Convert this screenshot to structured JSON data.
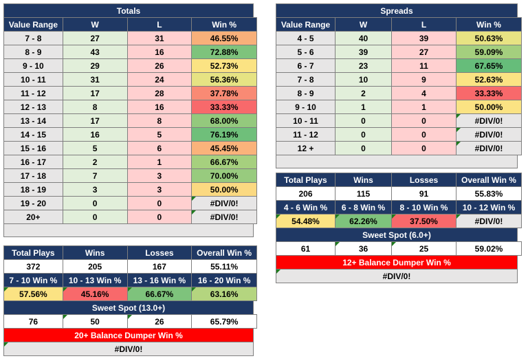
{
  "totals": {
    "title": "Totals",
    "headers": [
      "Value Range",
      "W",
      "L",
      "Win %"
    ],
    "rows": [
      {
        "range": "7 - 8",
        "w": "27",
        "l": "31",
        "pct": "46.55%",
        "color": "#f8b07a"
      },
      {
        "range": "8 - 9",
        "w": "43",
        "l": "16",
        "pct": "72.88%",
        "color": "#7ec37c"
      },
      {
        "range": "9 - 10",
        "w": "29",
        "l": "26",
        "pct": "52.73%",
        "color": "#fbe383"
      },
      {
        "range": "10 - 11",
        "w": "31",
        "l": "24",
        "pct": "56.36%",
        "color": "#e6e383"
      },
      {
        "range": "11 - 12",
        "w": "17",
        "l": "28",
        "pct": "37.78%",
        "color": "#f98a74"
      },
      {
        "range": "12 - 13",
        "w": "8",
        "l": "16",
        "pct": "33.33%",
        "color": "#f8696b"
      },
      {
        "range": "13 - 14",
        "w": "17",
        "l": "8",
        "pct": "68.00%",
        "color": "#94c97d"
      },
      {
        "range": "14 - 15",
        "w": "16",
        "l": "5",
        "pct": "76.19%",
        "color": "#6fbf7a"
      },
      {
        "range": "15 - 16",
        "w": "5",
        "l": "6",
        "pct": "45.45%",
        "color": "#fab37b"
      },
      {
        "range": "16 - 17",
        "w": "2",
        "l": "1",
        "pct": "66.67%",
        "color": "#a6d07e"
      },
      {
        "range": "17 - 18",
        "w": "7",
        "l": "3",
        "pct": "70.00%",
        "color": "#98cb7e"
      },
      {
        "range": "18 - 19",
        "w": "3",
        "l": "3",
        "pct": "50.00%",
        "color": "#fbd981"
      },
      {
        "range": "19 - 20",
        "w": "0",
        "l": "0",
        "pct": "#DIV/0!",
        "color": "#e7e6e6"
      },
      {
        "range": "20+",
        "w": "0",
        "l": "0",
        "pct": "#DIV/0!",
        "color": "#e7e6e6"
      }
    ],
    "summary_headers": [
      "Total Plays",
      "Wins",
      "Losses",
      "Overall Win %"
    ],
    "summary_values": [
      "372",
      "205",
      "167",
      "55.11%"
    ],
    "bucket_headers": [
      "7 - 10 Win %",
      "10 - 13 Win %",
      "13 - 16 Win %",
      "16 - 20 Win %"
    ],
    "bucket_values": [
      {
        "v": "57.56%",
        "color": "#fbe383"
      },
      {
        "v": "45.16%",
        "color": "#f8696b"
      },
      {
        "v": "66.67%",
        "color": "#7ec37c"
      },
      {
        "v": "63.16%",
        "color": "#b4d57f"
      }
    ],
    "sweet_title": "Sweet Spot (13.0+)",
    "sweet_values": [
      "76",
      "50",
      "26",
      "65.79%"
    ],
    "dumper_title": "20+ Balance Dumper Win %",
    "dumper_value": "#DIV/0!"
  },
  "spreads": {
    "title": "Spreads",
    "headers": [
      "Value Range",
      "W",
      "L",
      "Win %"
    ],
    "rows": [
      {
        "range": "4 - 5",
        "w": "40",
        "l": "39",
        "pct": "50.63%",
        "color": "#e8e383"
      },
      {
        "range": "5 - 6",
        "w": "39",
        "l": "27",
        "pct": "59.09%",
        "color": "#a4cf7e"
      },
      {
        "range": "6 - 7",
        "w": "23",
        "l": "11",
        "pct": "67.65%",
        "color": "#66bd7a"
      },
      {
        "range": "7 - 8",
        "w": "10",
        "l": "9",
        "pct": "52.63%",
        "color": "#fbe383"
      },
      {
        "range": "8 - 9",
        "w": "2",
        "l": "4",
        "pct": "33.33%",
        "color": "#f8696b"
      },
      {
        "range": "9 - 10",
        "w": "1",
        "l": "1",
        "pct": "50.00%",
        "color": "#fbe383"
      },
      {
        "range": "10 - 11",
        "w": "0",
        "l": "0",
        "pct": "#DIV/0!",
        "color": "#e7e6e6"
      },
      {
        "range": "11 - 12",
        "w": "0",
        "l": "0",
        "pct": "#DIV/0!",
        "color": "#e7e6e6"
      },
      {
        "range": "12 +",
        "w": "0",
        "l": "0",
        "pct": "#DIV/0!",
        "color": "#e7e6e6"
      }
    ],
    "summary_headers": [
      "Total Plays",
      "Wins",
      "Losses",
      "Overall Win %"
    ],
    "summary_values": [
      "206",
      "115",
      "91",
      "55.83%"
    ],
    "bucket_headers": [
      "4 - 6 Win %",
      "6 - 8 Win %",
      "8 - 10 Win %",
      "10 - 12 Win %"
    ],
    "bucket_values": [
      {
        "v": "54.48%",
        "color": "#fbe383"
      },
      {
        "v": "62.26%",
        "color": "#7ec37c"
      },
      {
        "v": "37.50%",
        "color": "#f8696b"
      },
      {
        "v": "#DIV/0!",
        "color": "#e7e6e6"
      }
    ],
    "sweet_title": "Sweet Spot (6.0+)",
    "sweet_values": [
      "61",
      "36",
      "25",
      "59.02%"
    ],
    "dumper_title": "12+ Balance Dumper Win %",
    "dumper_value": "#DIV/0!"
  }
}
